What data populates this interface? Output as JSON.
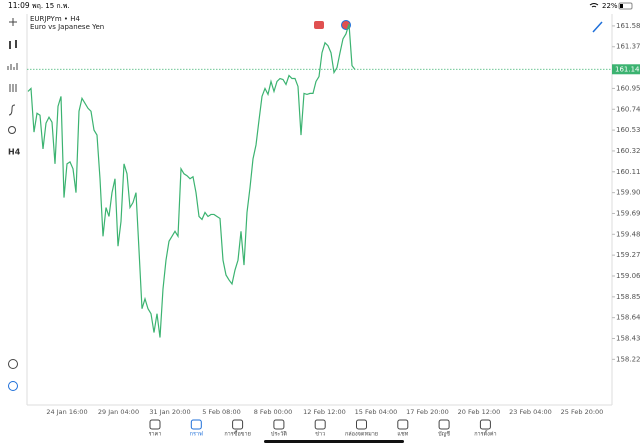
{
  "status_bar": {
    "time": "11:09",
    "date": "พฤ. 15 ก.พ.",
    "battery": "22%"
  },
  "symbol": {
    "title": "EURJPYm • H4",
    "description": "Euro vs Japanese Yen"
  },
  "left_toolbar": {
    "timeframe": "H4"
  },
  "chart": {
    "type": "line",
    "color": "#3cb371",
    "values": [
      160.92,
      160.95,
      160.51,
      160.7,
      160.68,
      160.34,
      160.6,
      160.66,
      160.61,
      160.19,
      160.77,
      160.87,
      159.85,
      160.19,
      160.21,
      160.14,
      159.9,
      160.72,
      160.85,
      160.8,
      160.75,
      160.72,
      160.53,
      160.48,
      160.04,
      159.46,
      159.75,
      159.66,
      159.9,
      160.04,
      159.36,
      159.61,
      160.19,
      160.09,
      159.75,
      159.8,
      159.9,
      159.32,
      158.73,
      158.83,
      158.73,
      158.68,
      158.49,
      158.68,
      158.44,
      158.93,
      159.22,
      159.41,
      159.46,
      159.51,
      159.46,
      160.14,
      160.09,
      160.07,
      160.04,
      160.06,
      159.9,
      159.66,
      159.63,
      159.7,
      159.66,
      159.68,
      159.68,
      159.66,
      159.64,
      159.22,
      159.07,
      159.02,
      158.98,
      159.12,
      159.22,
      159.51,
      159.17,
      159.7,
      159.95,
      160.24,
      160.38,
      160.63,
      160.87,
      160.95,
      160.89,
      161.02,
      160.92,
      161.02,
      161.05,
      161.04,
      160.99,
      161.08,
      161.05,
      161.05,
      160.97,
      160.48,
      160.9,
      160.89,
      160.9,
      160.9,
      161.02,
      161.07,
      161.31,
      161.41,
      161.38,
      161.31,
      161.11,
      161.16,
      161.31,
      161.45,
      161.5,
      161.6,
      161.18,
      161.14
    ],
    "ylim": [
      157.76,
      161.7
    ],
    "yticks": [
      {
        "value": 161.58,
        "label": "161.580"
      },
      {
        "value": 161.37,
        "label": "161.370"
      },
      {
        "value": 160.95,
        "label": "160.950"
      },
      {
        "value": 160.74,
        "label": "160.740"
      },
      {
        "value": 160.53,
        "label": "160.530"
      },
      {
        "value": 160.32,
        "label": "160.320"
      },
      {
        "value": 160.11,
        "label": "160.110"
      },
      {
        "value": 159.9,
        "label": "159.900"
      },
      {
        "value": 159.69,
        "label": "159.690"
      },
      {
        "value": 159.48,
        "label": "159.480"
      },
      {
        "value": 159.27,
        "label": "159.270"
      },
      {
        "value": 159.06,
        "label": "159.060"
      },
      {
        "value": 158.85,
        "label": "158.850"
      },
      {
        "value": 158.64,
        "label": "158.640"
      },
      {
        "value": 158.43,
        "label": "158.430"
      },
      {
        "value": 158.22,
        "label": "158.220"
      }
    ],
    "current_price": 161.143,
    "time_labels": [
      "24 Jan 16:00",
      "29 Jan 04:00",
      "31 Jan 20:00",
      "5 Feb 08:00",
      "8 Feb 00:00",
      "12 Feb 12:00",
      "15 Feb 04:00",
      "17 Feb 20:00",
      "20 Feb 12:00",
      "23 Feb 04:00",
      "25 Feb 20:00"
    ]
  },
  "nav": [
    "ราคา",
    "กราฟ",
    "การซื้อขาย",
    "ประวัติ",
    "ข่าว",
    "กล่องจดหมาย",
    "แชท",
    "บัญชี",
    "การตั้งค่า"
  ],
  "nav_active": 1
}
